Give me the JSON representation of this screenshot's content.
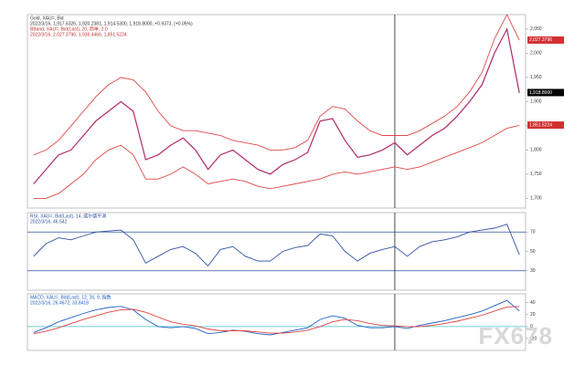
{
  "watermark": "FX678",
  "chart_data": [
    {
      "type": "line",
      "title": "Gold, XAU=, Bid",
      "subtitle": "2022/3/16, 1,917.6326, 1,920.2381, 1,914.5300, 1,918.8000, +0.9373, (+0.05%)",
      "band_title": "BBand, XAU=, Bid(Last), 20, 简单, 2.0",
      "band_subtitle": "2022/3/16, 2,027.3796, 1,936.4466, 1,851.5224",
      "categories": [
        null,
        null,
        null,
        null,
        null,
        null,
        null,
        null,
        null,
        null,
        null,
        null,
        null,
        null,
        null,
        null,
        null,
        null,
        null,
        null,
        null,
        null,
        null,
        null,
        null,
        null,
        null,
        null,
        null,
        null,
        null,
        null,
        null,
        null,
        null,
        null,
        null,
        null,
        null,
        null
      ],
      "ylim": [
        1680,
        2080
      ],
      "yticks": [
        {
          "value": 1700,
          "label": "1,700"
        },
        {
          "value": 1750,
          "label": "1,750"
        },
        {
          "value": 1800,
          "label": "1,800"
        },
        {
          "value": 1850,
          "label": "1,850"
        },
        {
          "value": 1900,
          "label": "1,900"
        },
        {
          "value": 1950,
          "label": "1,950"
        },
        {
          "value": 2000,
          "label": "2,000"
        },
        {
          "value": 2050,
          "label": "2,050"
        }
      ],
      "grid": false,
      "cursor_index": 29,
      "series": [
        {
          "name": "XAU=",
          "color": "#b02a66",
          "values": [
            1730,
            1760,
            1790,
            1800,
            1830,
            1860,
            1880,
            1900,
            1880,
            1780,
            1790,
            1810,
            1825,
            1800,
            1760,
            1790,
            1800,
            1780,
            1760,
            1750,
            1770,
            1780,
            1795,
            1860,
            1865,
            1820,
            1785,
            1790,
            1800,
            1815,
            1790,
            1810,
            1830,
            1845,
            1870,
            1900,
            1935,
            2000,
            2050,
            1918
          ]
        },
        {
          "name": "BBand Upper",
          "color": "#e04848",
          "values": [
            1790,
            1800,
            1820,
            1850,
            1880,
            1910,
            1935,
            1950,
            1945,
            1920,
            1880,
            1850,
            1840,
            1840,
            1835,
            1830,
            1820,
            1815,
            1810,
            1800,
            1800,
            1805,
            1820,
            1870,
            1890,
            1885,
            1860,
            1840,
            1830,
            1830,
            1830,
            1840,
            1855,
            1870,
            1890,
            1920,
            1960,
            2030,
            2080,
            2027
          ]
        },
        {
          "name": "BBand Lower",
          "color": "#e04848",
          "values": [
            1700,
            1700,
            1710,
            1730,
            1750,
            1780,
            1800,
            1810,
            1790,
            1740,
            1740,
            1750,
            1765,
            1750,
            1730,
            1735,
            1740,
            1735,
            1725,
            1720,
            1725,
            1730,
            1735,
            1740,
            1750,
            1755,
            1750,
            1755,
            1760,
            1765,
            1760,
            1765,
            1775,
            1785,
            1795,
            1805,
            1815,
            1830,
            1845,
            1851
          ]
        }
      ],
      "price_tags": [
        {
          "value": 2027.3796,
          "label": "2,027.3796",
          "color": "#d03030"
        },
        {
          "value": 1918.8,
          "label": "1,918.8000",
          "color": "#000000"
        },
        {
          "value": 1851.5224,
          "label": "1,851.5224",
          "color": "#d03030"
        }
      ]
    },
    {
      "type": "line",
      "title": "RSI, XAU=, Bid(Last), 14, 威尔德平滑",
      "subtitle": "2022/3/16, 46.542",
      "categories": [
        null,
        null,
        null,
        null,
        null,
        null,
        null,
        null,
        null,
        null,
        null,
        null,
        null,
        null,
        null,
        null,
        null,
        null,
        null,
        null,
        null,
        null,
        null,
        null,
        null,
        null,
        null,
        null,
        null,
        null,
        null,
        null,
        null,
        null,
        null,
        null,
        null,
        null,
        null,
        null
      ],
      "ylim": [
        10,
        90
      ],
      "yticks": [
        30,
        50,
        70
      ],
      "levels": [
        70,
        30
      ],
      "level_color": "#3050a0",
      "cursor_index": 29,
      "series": [
        {
          "name": "RSI",
          "color": "#3050a0",
          "values": [
            45,
            58,
            64,
            62,
            66,
            70,
            71,
            72,
            62,
            38,
            45,
            52,
            55,
            48,
            35,
            52,
            55,
            45,
            40,
            40,
            50,
            54,
            56,
            68,
            66,
            50,
            40,
            48,
            52,
            55,
            45,
            55,
            60,
            62,
            65,
            70,
            72,
            74,
            78,
            46.542
          ]
        }
      ]
    },
    {
      "type": "line",
      "title": "MACD, XAU=, Bid(Last), 12, 26, 9, 指数",
      "subtitle": "2022/3/16, 26.4672, 33.8418",
      "categories": [
        null,
        null,
        null,
        null,
        null,
        null,
        null,
        null,
        null,
        null,
        null,
        null,
        null,
        null,
        null,
        null,
        null,
        null,
        null,
        null,
        null,
        null,
        null,
        null,
        null,
        null,
        null,
        null,
        null,
        null,
        null,
        null,
        null,
        null,
        null,
        null,
        null,
        null,
        null,
        null
      ],
      "ylim": [
        -40,
        55
      ],
      "yticks": [
        -20,
        0,
        20,
        40
      ],
      "levels": [
        0
      ],
      "level_color": "#40c0d0",
      "cursor_index": 29,
      "series": [
        {
          "name": "MACD",
          "color": "#2060c0",
          "values": [
            -10,
            -2,
            8,
            15,
            22,
            28,
            32,
            34,
            28,
            12,
            0,
            -2,
            0,
            -3,
            -12,
            -10,
            -6,
            -8,
            -12,
            -14,
            -10,
            -6,
            -2,
            12,
            18,
            14,
            2,
            -2,
            -2,
            0,
            -3,
            2,
            6,
            10,
            15,
            20,
            26,
            35,
            44,
            26.4672
          ]
        },
        {
          "name": "Signal",
          "color": "#e04040",
          "values": [
            -12,
            -8,
            -2,
            5,
            12,
            18,
            24,
            28,
            29,
            24,
            16,
            8,
            4,
            1,
            -4,
            -7,
            -7,
            -7,
            -9,
            -11,
            -11,
            -9,
            -6,
            0,
            8,
            12,
            10,
            5,
            2,
            1,
            0,
            0,
            2,
            5,
            9,
            14,
            19,
            26,
            33,
            33.8418
          ]
        }
      ]
    }
  ]
}
